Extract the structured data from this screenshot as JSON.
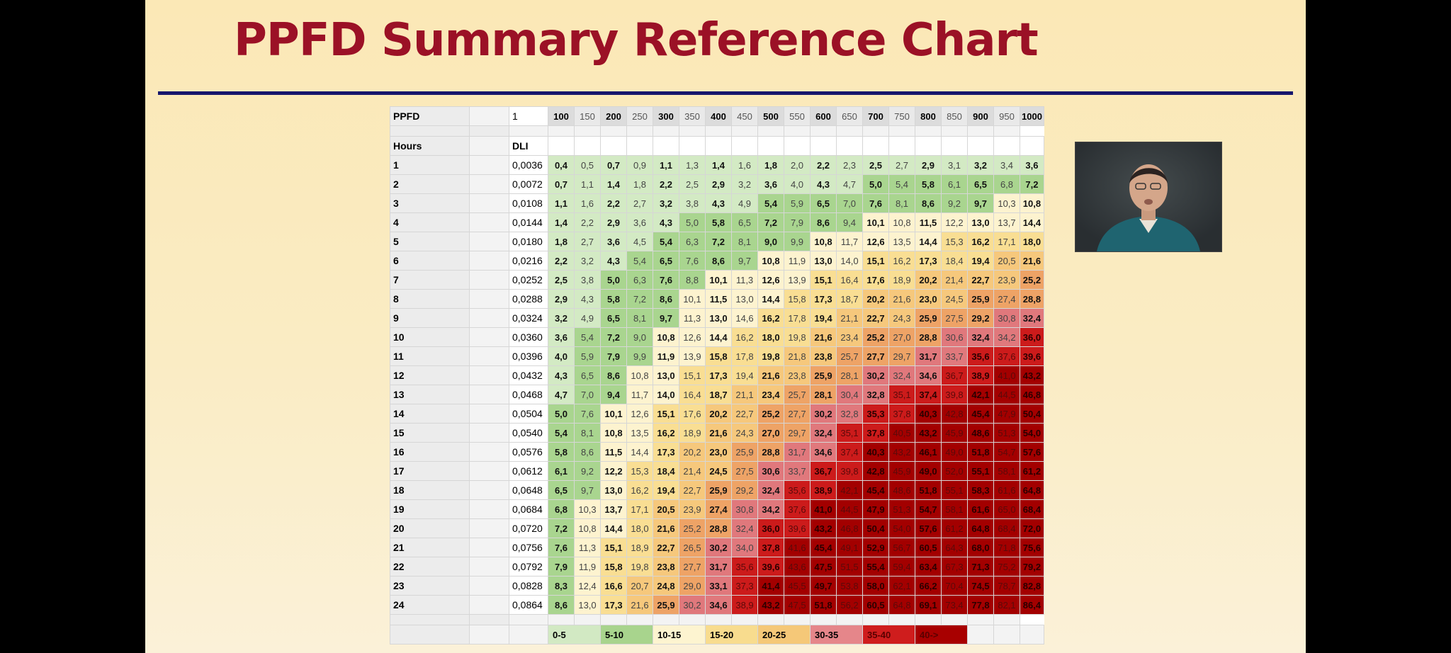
{
  "slide": {
    "title": "PPFD Summary Reference Chart"
  },
  "table": {
    "ppfd_label": "PPFD",
    "ppfd_unit_value": "1",
    "hours_label": "Hours",
    "dli_label": "DLI",
    "ppfd_columns": [
      "100",
      "150",
      "200",
      "250",
      "300",
      "350",
      "400",
      "450",
      "500",
      "550",
      "600",
      "650",
      "700",
      "750",
      "800",
      "850",
      "900",
      "950",
      "1000"
    ],
    "rows": [
      {
        "hours": "1",
        "dli": "0,0036"
      },
      {
        "hours": "2",
        "dli": "0,0072"
      },
      {
        "hours": "3",
        "dli": "0,0108"
      },
      {
        "hours": "4",
        "dli": "0,0144"
      },
      {
        "hours": "5",
        "dli": "0,0180"
      },
      {
        "hours": "6",
        "dli": "0,0216"
      },
      {
        "hours": "7",
        "dli": "0,0252"
      },
      {
        "hours": "8",
        "dli": "0,0288"
      },
      {
        "hours": "9",
        "dli": "0,0324"
      },
      {
        "hours": "10",
        "dli": "0,0360"
      },
      {
        "hours": "11",
        "dli": "0,0396"
      },
      {
        "hours": "12",
        "dli": "0,0432"
      },
      {
        "hours": "13",
        "dli": "0,0468"
      },
      {
        "hours": "14",
        "dli": "0,0504"
      },
      {
        "hours": "15",
        "dli": "0,0540"
      },
      {
        "hours": "16",
        "dli": "0,0576"
      },
      {
        "hours": "17",
        "dli": "0,0612"
      },
      {
        "hours": "18",
        "dli": "0,0648"
      },
      {
        "hours": "19",
        "dli": "0,0684"
      },
      {
        "hours": "20",
        "dli": "0,0720"
      },
      {
        "hours": "21",
        "dli": "0,0756"
      },
      {
        "hours": "22",
        "dli": "0,0792"
      },
      {
        "hours": "23",
        "dli": "0,0828"
      },
      {
        "hours": "24",
        "dli": "0,0864"
      }
    ],
    "legend": [
      {
        "label": "0-5",
        "color": "#d2e9c3"
      },
      {
        "label": "5-10",
        "color": "#a8d48d"
      },
      {
        "label": "10-15",
        "color": "#fdf4d0"
      },
      {
        "label": "15-20",
        "color": "#f8dc8e"
      },
      {
        "label": "20-25",
        "color": "#f5c878"
      },
      {
        "label": "30-35",
        "color": "#e5868a"
      },
      {
        "label": "35-40",
        "color": "#cf1d1d"
      },
      {
        "label": "40->",
        "color": "#a80000"
      }
    ]
  }
}
